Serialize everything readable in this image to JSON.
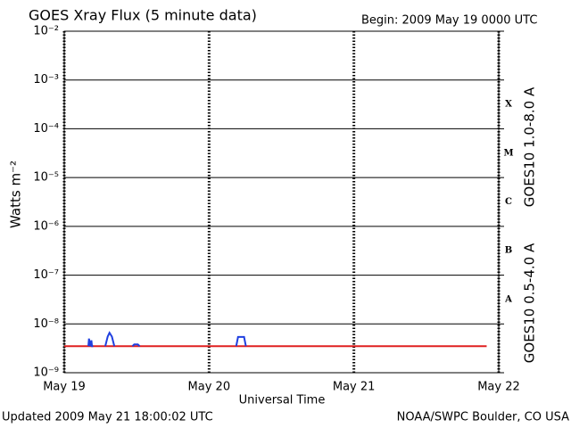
{
  "chart_data": {
    "type": "line",
    "title": "GOES Xray Flux (5 minute data)",
    "subtitle": "Begin:  2009 May 19 0000 UTC",
    "y_label": "Watts m⁻²",
    "x_label": "Universal Time",
    "footer_left": "Updated 2009 May 21 18:00:02 UTC",
    "footer_right": "NOAA/SWPC Boulder, CO USA",
    "log_y": true,
    "grid": true,
    "xlim": [
      0,
      72
    ],
    "xticks": [
      {
        "value": 0,
        "label": "May 19"
      },
      {
        "value": 24,
        "label": "May 20"
      },
      {
        "value": 48,
        "label": "May 21"
      },
      {
        "value": 72,
        "label": "May 22"
      }
    ],
    "ylim": [
      1e-09,
      0.01
    ],
    "yticks": [
      {
        "value": 1e-09,
        "label": "10⁻⁹"
      },
      {
        "value": 1e-08,
        "label": "10⁻⁸"
      },
      {
        "value": 1e-07,
        "label": "10⁻⁷"
      },
      {
        "value": 1e-06,
        "label": "10⁻⁶"
      },
      {
        "value": 1e-05,
        "label": "10⁻⁵"
      },
      {
        "value": 0.0001,
        "label": "10⁻⁴"
      },
      {
        "value": 0.001,
        "label": "10⁻³"
      },
      {
        "value": 0.01,
        "label": "10⁻²"
      }
    ],
    "flare_classes": [
      {
        "value": 0.0001,
        "label": "X"
      },
      {
        "value": 1e-05,
        "label": "M"
      },
      {
        "value": 1e-06,
        "label": "C"
      },
      {
        "value": 1e-07,
        "label": "B"
      },
      {
        "value": 1e-08,
        "label": "A"
      }
    ],
    "series": [
      {
        "name": "GOES10 1.0-8.0 A",
        "color": "#e02020",
        "x": [
          0,
          70
        ],
        "values": [
          3.5e-09,
          3.5e-09
        ]
      },
      {
        "name": "GOES10 0.5-4.0 A",
        "color": "#2040e0",
        "x": [
          4.0,
          4.1,
          4.3,
          4.5,
          4.6,
          4.8,
          5.5,
          6.8,
          7.2,
          7.5,
          7.9,
          8.3,
          9.5,
          11.3,
          11.6,
          12.2,
          12.5,
          20,
          28.5,
          28.8,
          29.8,
          30.1
        ],
        "values": [
          3.5e-09,
          5e-09,
          3.5e-09,
          4.6e-09,
          3.5e-09,
          3.5e-09,
          null,
          3.5e-09,
          5.5e-09,
          6.6e-09,
          5.5e-09,
          3.5e-09,
          null,
          3.5e-09,
          3.8e-09,
          3.8e-09,
          3.5e-09,
          null,
          3.5e-09,
          5.4e-09,
          5.4e-09,
          3.5e-09
        ]
      }
    ]
  }
}
